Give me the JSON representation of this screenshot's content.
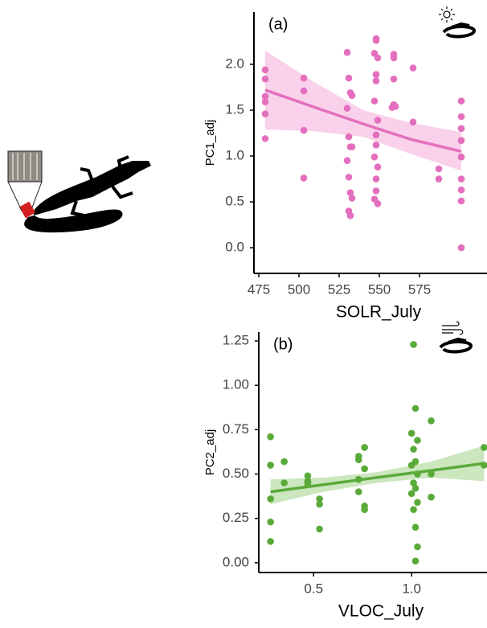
{
  "chart_data": [
    {
      "type": "scatter",
      "annotation": "(a)",
      "x_label": "SOLR_July",
      "y_label": "PC1_adj",
      "color": "#e46fbe",
      "band_color": "#f7c5e5",
      "xlim": [
        472,
        617
      ],
      "ylim": [
        -0.28,
        2.57
      ],
      "xticks": [
        475,
        500,
        525,
        550,
        575
      ],
      "yticks": [
        {
          "value": 0,
          "label": "0.0"
        },
        0.5,
        {
          "value": 1,
          "label": "1.0"
        },
        1.5,
        {
          "value": 2,
          "label": "2.0"
        }
      ],
      "x": [
        479,
        479,
        479,
        479,
        479,
        479,
        503,
        503,
        503,
        503,
        530,
        531,
        532,
        533,
        530,
        531,
        532,
        533,
        530,
        531,
        532,
        533,
        531,
        532,
        548,
        548,
        547,
        549,
        548,
        548,
        547,
        549,
        548,
        548,
        547,
        549,
        548,
        548,
        547,
        549,
        559,
        559,
        559,
        559,
        560,
        558,
        571,
        571,
        587,
        587,
        601,
        601,
        601,
        601,
        601,
        601,
        601,
        601,
        601
      ],
      "values": [
        1.94,
        1.84,
        1.65,
        1.59,
        1.46,
        1.19,
        1.85,
        1.71,
        1.28,
        0.76,
        2.13,
        1.85,
        1.69,
        1.66,
        1.52,
        1.21,
        1.1,
        1.1,
        0.95,
        0.77,
        0.6,
        0.54,
        0.4,
        0.35,
        2.26,
        2.28,
        2.12,
        2.07,
        1.89,
        1.82,
        1.6,
        1.39,
        1.23,
        1.12,
        0.99,
        0.88,
        0.75,
        0.62,
        0.53,
        0.48,
        2.11,
        2.07,
        1.84,
        1.56,
        1.54,
        1.53,
        1.96,
        1.37,
        0.86,
        0.75,
        1.6,
        1.43,
        1.3,
        1.17,
        0.99,
        0.75,
        0.63,
        0.51,
        0.0
      ],
      "fit": {
        "x": [
          479,
          510,
          540,
          570,
          601
        ],
        "y": [
          1.72,
          1.53,
          1.35,
          1.18,
          1.05
        ],
        "lower": [
          1.29,
          1.27,
          1.21,
          1.02,
          0.84
        ],
        "upper": [
          2.15,
          1.8,
          1.5,
          1.36,
          1.26
        ]
      }
    },
    {
      "type": "scatter",
      "annotation": "(b)",
      "x_label": "VLOC_July",
      "y_label": "PC2_adj",
      "color": "#5aaa3a",
      "band_color": "#bfe0ae",
      "xlim": [
        0.22,
        1.385
      ],
      "ylim": [
        -0.055,
        1.3
      ],
      "xticks": [
        0.5,
        {
          "value": 1,
          "label": "1.0"
        }
      ],
      "yticks": [
        {
          "value": 0,
          "label": "0.00"
        },
        0.25,
        {
          "value": 0.5,
          "label": "0.50"
        },
        0.75,
        {
          "value": 1,
          "label": "1.00"
        },
        1.25
      ],
      "x": [
        0.28,
        0.28,
        0.28,
        0.28,
        0.28,
        0.28,
        0.35,
        0.35,
        0.47,
        0.47,
        0.47,
        0.47,
        0.53,
        0.53,
        0.53,
        0.73,
        0.73,
        0.73,
        0.73,
        0.76,
        0.76,
        0.76,
        0.76,
        1.01,
        1.02,
        1.0,
        1.03,
        1.01,
        1.02,
        1.0,
        1.03,
        1.01,
        1.02,
        1.0,
        1.03,
        1.01,
        1.02,
        1.03,
        1.02,
        1.1,
        1.1,
        1.1,
        1.37,
        1.37
      ],
      "values": [
        0.71,
        0.55,
        0.55,
        0.36,
        0.23,
        0.12,
        0.57,
        0.45,
        0.49,
        0.46,
        0.45,
        0.44,
        0.36,
        0.33,
        0.19,
        0.6,
        0.58,
        0.47,
        0.4,
        0.65,
        0.53,
        0.32,
        0.3,
        1.23,
        0.87,
        0.73,
        0.69,
        0.64,
        0.57,
        0.55,
        0.5,
        0.45,
        0.42,
        0.39,
        0.34,
        0.3,
        0.2,
        0.09,
        0.01,
        0.8,
        0.5,
        0.37,
        0.65,
        0.55
      ],
      "fit": {
        "x": [
          0.28,
          0.55,
          0.82,
          1.1,
          1.37
        ],
        "y": [
          0.4,
          0.44,
          0.48,
          0.52,
          0.56
        ],
        "lower": [
          0.33,
          0.4,
          0.45,
          0.48,
          0.46
        ],
        "upper": [
          0.47,
          0.48,
          0.51,
          0.57,
          0.66
        ]
      }
    }
  ]
}
